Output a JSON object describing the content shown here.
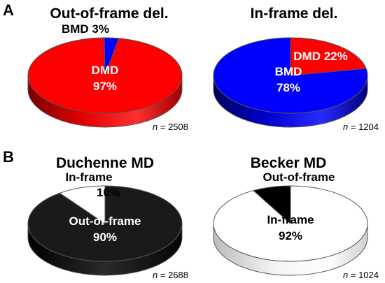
{
  "panels": [
    {
      "letter": "A"
    },
    {
      "letter": "B"
    }
  ],
  "chart_data": [
    {
      "type": "pie",
      "panel": "A",
      "title": "Out-of-frame del.",
      "categories": [
        "DMD",
        "BMD"
      ],
      "values": [
        97,
        3
      ],
      "unit": "%",
      "colors": [
        "#ff0000",
        "#0000ff"
      ],
      "labels": [
        {
          "name": "DMD",
          "value": "97%"
        },
        {
          "name": "BMD",
          "value": "3%"
        }
      ],
      "n_prefix": "n",
      "n_value": "= 2508"
    },
    {
      "type": "pie",
      "panel": "A",
      "title": "In-frame del.",
      "categories": [
        "BMD",
        "DMD"
      ],
      "values": [
        78,
        22
      ],
      "unit": "%",
      "colors": [
        "#0000ff",
        "#ff0000"
      ],
      "labels": [
        {
          "name": "BMD",
          "value": "78%"
        },
        {
          "name": "DMD",
          "value": "22%"
        }
      ],
      "n_prefix": "n",
      "n_value": "= 1204"
    },
    {
      "type": "pie",
      "panel": "B",
      "title": "Duchenne MD",
      "categories": [
        "Out-of-frame",
        "In-frame"
      ],
      "values": [
        90,
        10
      ],
      "unit": "%",
      "colors": [
        "#1a1a1a",
        "#ffffff"
      ],
      "labels": [
        {
          "name": "Out-of-frame",
          "value": "90%"
        },
        {
          "name": "In-frame",
          "value": "10%"
        }
      ],
      "n_prefix": "n",
      "n_value": "= 2688"
    },
    {
      "type": "pie",
      "panel": "B",
      "title": "Becker MD",
      "categories": [
        "In-frame",
        "Out-of-frame"
      ],
      "values": [
        92,
        8
      ],
      "unit": "%",
      "colors": [
        "#ffffff",
        "#000000"
      ],
      "labels": [
        {
          "name": "In-frame",
          "value": "92%"
        },
        {
          "name": "Out-of-frame",
          "value": "8%"
        }
      ],
      "n_prefix": "n",
      "n_value": "= 1024"
    }
  ]
}
